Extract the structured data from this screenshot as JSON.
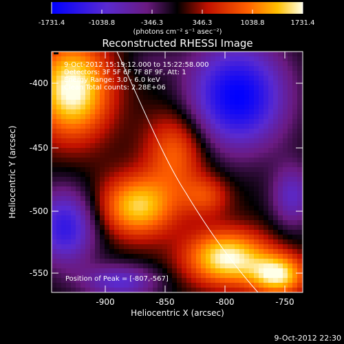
{
  "colorbar": {
    "ticks": [
      "-1731.4",
      "-1038.8",
      "-346.3",
      "346.3",
      "1038.8",
      "1731.4"
    ],
    "units": "(photons cm⁻² s⁻¹ asec⁻²)"
  },
  "title": "Reconstructed RHESSI Image",
  "info": {
    "line1": "9-Oct-2012 15:19:12.000 to 15:22:58.000",
    "line2": "Detectors: 3F 5F 6F 7F 8F 9F, Att: 1",
    "line3": "Energy Range: 3.0 - 6.0 keV",
    "line4": "Clean   Total counts: 2.28E+06"
  },
  "peak_label": "Position of Peak = [-807,-567]",
  "xaxis": {
    "label": "Heliocentric X (arcsec)",
    "ticks": [
      "-900",
      "-850",
      "-800",
      "-750"
    ]
  },
  "yaxis": {
    "label": "Heliocentric Y (arcsec)",
    "ticks": [
      "-400",
      "-450",
      "-500",
      "-550"
    ]
  },
  "timestamp": "9-Oct-2012 22:30",
  "colors": {
    "neg_max": "#0000ff",
    "neg_mid": "#7020b0",
    "zero": "#000000",
    "pos_mid": "#e02000",
    "pos_high": "#ffa000",
    "pos_max": "#ffffe0"
  }
}
